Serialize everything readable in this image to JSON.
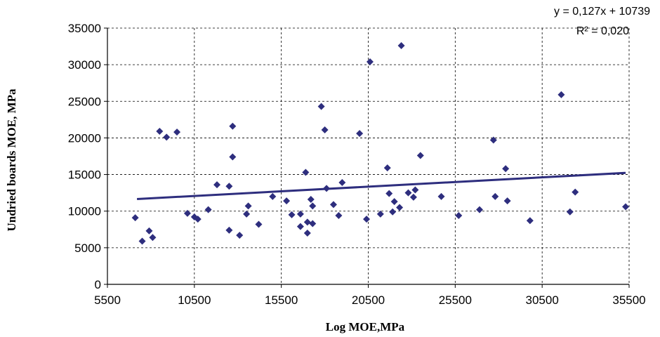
{
  "chart_data": {
    "type": "scatter",
    "xlabel": "Log MOE,MPa",
    "ylabel": "Undried boards MOE, MPa",
    "xlim": [
      5500,
      35500
    ],
    "ylim": [
      0,
      35000
    ],
    "x_ticks": [
      "5500",
      "10500",
      "15500",
      "20500",
      "25500",
      "30500",
      "35500"
    ],
    "y_ticks": [
      "0",
      "5000",
      "10000",
      "15000",
      "20000",
      "25000",
      "30000",
      "35000"
    ],
    "grid": {
      "x": true,
      "y": true,
      "style": "dashed"
    },
    "marker_color": "#2e2e7e",
    "trendline": {
      "equation": "y = 0,127x + 10739",
      "r_squared": "R² = 0,020",
      "slope": 0.127,
      "intercept": 10739,
      "x_range": [
        7200,
        35300
      ],
      "color": "#2e2e7e"
    },
    "points": [
      [
        7100,
        9100
      ],
      [
        7500,
        5900
      ],
      [
        7900,
        7300
      ],
      [
        8100,
        6400
      ],
      [
        8500,
        20900
      ],
      [
        8900,
        20100
      ],
      [
        9500,
        20800
      ],
      [
        10100,
        9700
      ],
      [
        10500,
        9200
      ],
      [
        10700,
        8900
      ],
      [
        11300,
        10200
      ],
      [
        11800,
        13600
      ],
      [
        12500,
        13400
      ],
      [
        12500,
        7400
      ],
      [
        12700,
        21600
      ],
      [
        12700,
        17400
      ],
      [
        13100,
        6700
      ],
      [
        13500,
        9600
      ],
      [
        13600,
        10700
      ],
      [
        14200,
        8200
      ],
      [
        15000,
        12000
      ],
      [
        15800,
        11400
      ],
      [
        16100,
        9500
      ],
      [
        16600,
        7900
      ],
      [
        16600,
        9600
      ],
      [
        16900,
        15300
      ],
      [
        17000,
        8500
      ],
      [
        17000,
        7000
      ],
      [
        17200,
        11600
      ],
      [
        17300,
        10700
      ],
      [
        17300,
        8300
      ],
      [
        17800,
        24300
      ],
      [
        18000,
        21100
      ],
      [
        18100,
        13100
      ],
      [
        18500,
        10900
      ],
      [
        18800,
        9400
      ],
      [
        19000,
        13900
      ],
      [
        20000,
        20600
      ],
      [
        20400,
        8900
      ],
      [
        20600,
        30400
      ],
      [
        21200,
        9600
      ],
      [
        21600,
        15900
      ],
      [
        21700,
        12400
      ],
      [
        21900,
        9900
      ],
      [
        22000,
        11300
      ],
      [
        22300,
        10500
      ],
      [
        22400,
        32600
      ],
      [
        22800,
        12500
      ],
      [
        23100,
        11900
      ],
      [
        23200,
        12900
      ],
      [
        23500,
        17600
      ],
      [
        24700,
        12000
      ],
      [
        25700,
        9400
      ],
      [
        26900,
        10200
      ],
      [
        27700,
        19700
      ],
      [
        27800,
        12000
      ],
      [
        28400,
        15800
      ],
      [
        28500,
        11400
      ],
      [
        29800,
        8700
      ],
      [
        31600,
        25900
      ],
      [
        32100,
        9900
      ],
      [
        32400,
        12600
      ],
      [
        35300,
        10600
      ]
    ]
  }
}
